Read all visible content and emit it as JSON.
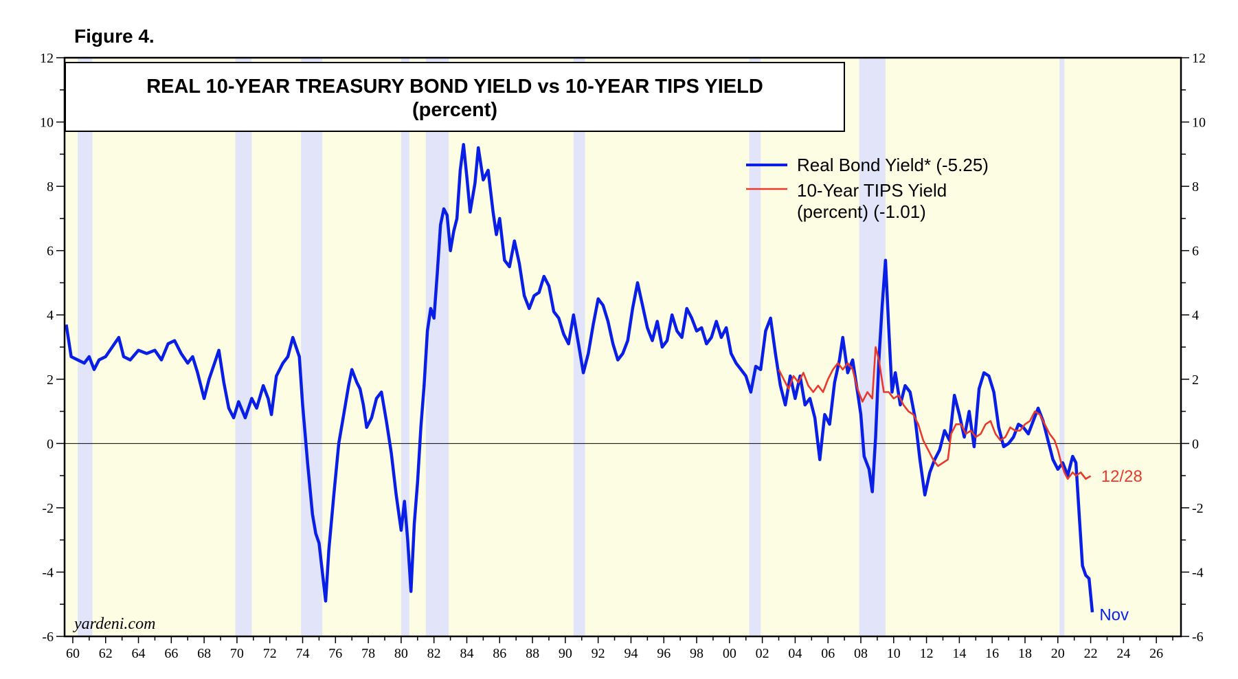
{
  "chart_data": {
    "type": "line",
    "figure_label": "Figure 4.",
    "title": "REAL 10-YEAR TREASURY BOND YIELD vs 10-YEAR TIPS YIELD",
    "subtitle": "(percent)",
    "xlabel": "",
    "ylabel": "",
    "x_range": [
      1959.5,
      2027.5
    ],
    "ylim": [
      -6,
      12
    ],
    "y_ticks": [
      -6,
      -4,
      -2,
      0,
      2,
      4,
      6,
      8,
      10,
      12
    ],
    "x_ticks": [
      "60",
      "62",
      "64",
      "66",
      "68",
      "70",
      "72",
      "74",
      "76",
      "78",
      "80",
      "82",
      "84",
      "86",
      "88",
      "90",
      "92",
      "94",
      "96",
      "98",
      "00",
      "02",
      "04",
      "06",
      "08",
      "10",
      "12",
      "14",
      "16",
      "18",
      "20",
      "22",
      "24",
      "26"
    ],
    "x_tick_years": [
      1960,
      1962,
      1964,
      1966,
      1968,
      1970,
      1972,
      1974,
      1976,
      1978,
      1980,
      1982,
      1984,
      1986,
      1988,
      1990,
      1992,
      1994,
      1996,
      1998,
      2000,
      2002,
      2004,
      2006,
      2008,
      2010,
      2012,
      2014,
      2016,
      2018,
      2020,
      2022,
      2024,
      2026
    ],
    "grid": false,
    "zero_line": true,
    "legend": "top-right",
    "recessions": [
      [
        1960.3,
        1961.2
      ],
      [
        1969.9,
        1970.9
      ],
      [
        1973.9,
        1975.2
      ],
      [
        1980.0,
        1980.5
      ],
      [
        1981.5,
        1982.9
      ],
      [
        1990.5,
        1991.2
      ],
      [
        2001.2,
        2001.9
      ],
      [
        2007.9,
        2009.5
      ],
      [
        2020.1,
        2020.4
      ]
    ],
    "series": [
      {
        "name": "Real Bond Yield* (-5.25)",
        "color": "#0a1fe6",
        "points": [
          [
            1959.6,
            3.7
          ],
          [
            1959.9,
            2.7
          ],
          [
            1960.3,
            2.6
          ],
          [
            1960.7,
            2.5
          ],
          [
            1961.0,
            2.7
          ],
          [
            1961.3,
            2.3
          ],
          [
            1961.6,
            2.6
          ],
          [
            1962.0,
            2.7
          ],
          [
            1962.4,
            3.0
          ],
          [
            1962.8,
            3.3
          ],
          [
            1963.1,
            2.7
          ],
          [
            1963.5,
            2.6
          ],
          [
            1964.0,
            2.9
          ],
          [
            1964.5,
            2.8
          ],
          [
            1965.0,
            2.9
          ],
          [
            1965.4,
            2.6
          ],
          [
            1965.8,
            3.1
          ],
          [
            1966.2,
            3.2
          ],
          [
            1966.6,
            2.8
          ],
          [
            1967.0,
            2.5
          ],
          [
            1967.3,
            2.7
          ],
          [
            1967.6,
            2.2
          ],
          [
            1968.0,
            1.4
          ],
          [
            1968.3,
            2.0
          ],
          [
            1968.7,
            2.6
          ],
          [
            1968.9,
            2.9
          ],
          [
            1969.2,
            1.9
          ],
          [
            1969.5,
            1.1
          ],
          [
            1969.8,
            0.8
          ],
          [
            1970.1,
            1.3
          ],
          [
            1970.5,
            0.8
          ],
          [
            1970.9,
            1.4
          ],
          [
            1971.2,
            1.1
          ],
          [
            1971.6,
            1.8
          ],
          [
            1971.9,
            1.4
          ],
          [
            1972.1,
            0.9
          ],
          [
            1972.4,
            2.1
          ],
          [
            1972.8,
            2.5
          ],
          [
            1973.1,
            2.7
          ],
          [
            1973.4,
            3.3
          ],
          [
            1973.8,
            2.7
          ],
          [
            1974.0,
            1.2
          ],
          [
            1974.3,
            -0.6
          ],
          [
            1974.6,
            -2.2
          ],
          [
            1974.8,
            -2.8
          ],
          [
            1975.0,
            -3.1
          ],
          [
            1975.2,
            -4.0
          ],
          [
            1975.4,
            -4.9
          ],
          [
            1975.6,
            -3.3
          ],
          [
            1975.9,
            -1.6
          ],
          [
            1976.2,
            0.0
          ],
          [
            1976.5,
            0.9
          ],
          [
            1976.8,
            1.8
          ],
          [
            1977.0,
            2.3
          ],
          [
            1977.3,
            1.9
          ],
          [
            1977.5,
            1.7
          ],
          [
            1977.7,
            1.2
          ],
          [
            1977.9,
            0.5
          ],
          [
            1978.2,
            0.8
          ],
          [
            1978.5,
            1.4
          ],
          [
            1978.8,
            1.6
          ],
          [
            1979.1,
            0.7
          ],
          [
            1979.4,
            -0.3
          ],
          [
            1979.7,
            -1.6
          ],
          [
            1980.0,
            -2.7
          ],
          [
            1980.2,
            -1.8
          ],
          [
            1980.4,
            -3.0
          ],
          [
            1980.6,
            -4.6
          ],
          [
            1980.8,
            -2.5
          ],
          [
            1981.0,
            -1.2
          ],
          [
            1981.2,
            0.5
          ],
          [
            1981.4,
            1.8
          ],
          [
            1981.6,
            3.5
          ],
          [
            1981.8,
            4.2
          ],
          [
            1982.0,
            3.9
          ],
          [
            1982.2,
            5.3
          ],
          [
            1982.4,
            6.8
          ],
          [
            1982.6,
            7.3
          ],
          [
            1982.8,
            7.1
          ],
          [
            1983.0,
            6.0
          ],
          [
            1983.2,
            6.6
          ],
          [
            1983.4,
            7.0
          ],
          [
            1983.6,
            8.5
          ],
          [
            1983.8,
            9.3
          ],
          [
            1984.0,
            8.3
          ],
          [
            1984.2,
            7.2
          ],
          [
            1984.5,
            8.1
          ],
          [
            1984.7,
            9.2
          ],
          [
            1985.0,
            8.2
          ],
          [
            1985.3,
            8.5
          ],
          [
            1985.6,
            7.2
          ],
          [
            1985.8,
            6.5
          ],
          [
            1986.0,
            7.0
          ],
          [
            1986.3,
            5.7
          ],
          [
            1986.6,
            5.5
          ],
          [
            1986.9,
            6.3
          ],
          [
            1987.2,
            5.6
          ],
          [
            1987.5,
            4.6
          ],
          [
            1987.8,
            4.2
          ],
          [
            1988.1,
            4.6
          ],
          [
            1988.4,
            4.7
          ],
          [
            1988.7,
            5.2
          ],
          [
            1989.0,
            4.9
          ],
          [
            1989.3,
            4.1
          ],
          [
            1989.6,
            3.9
          ],
          [
            1989.9,
            3.4
          ],
          [
            1990.2,
            3.1
          ],
          [
            1990.5,
            4.0
          ],
          [
            1990.8,
            3.1
          ],
          [
            1991.1,
            2.2
          ],
          [
            1991.4,
            2.8
          ],
          [
            1991.7,
            3.7
          ],
          [
            1992.0,
            4.5
          ],
          [
            1992.3,
            4.3
          ],
          [
            1992.6,
            3.8
          ],
          [
            1992.9,
            3.1
          ],
          [
            1993.2,
            2.6
          ],
          [
            1993.5,
            2.8
          ],
          [
            1993.8,
            3.2
          ],
          [
            1994.1,
            4.2
          ],
          [
            1994.4,
            5.0
          ],
          [
            1994.7,
            4.3
          ],
          [
            1995.0,
            3.6
          ],
          [
            1995.3,
            3.2
          ],
          [
            1995.6,
            3.8
          ],
          [
            1995.9,
            3.0
          ],
          [
            1996.2,
            3.2
          ],
          [
            1996.5,
            4.0
          ],
          [
            1996.8,
            3.5
          ],
          [
            1997.1,
            3.3
          ],
          [
            1997.4,
            4.2
          ],
          [
            1997.7,
            3.9
          ],
          [
            1998.0,
            3.5
          ],
          [
            1998.3,
            3.6
          ],
          [
            1998.6,
            3.1
          ],
          [
            1998.9,
            3.3
          ],
          [
            1999.2,
            3.8
          ],
          [
            1999.5,
            3.3
          ],
          [
            1999.8,
            3.6
          ],
          [
            2000.1,
            2.8
          ],
          [
            2000.4,
            2.5
          ],
          [
            2000.7,
            2.3
          ],
          [
            2001.0,
            2.1
          ],
          [
            2001.3,
            1.6
          ],
          [
            2001.6,
            2.4
          ],
          [
            2001.9,
            2.3
          ],
          [
            2002.2,
            3.5
          ],
          [
            2002.5,
            3.9
          ],
          [
            2002.8,
            2.8
          ],
          [
            2003.1,
            1.8
          ],
          [
            2003.4,
            1.2
          ],
          [
            2003.7,
            2.1
          ],
          [
            2004.0,
            1.4
          ],
          [
            2004.3,
            2.1
          ],
          [
            2004.6,
            1.2
          ],
          [
            2004.9,
            1.4
          ],
          [
            2005.2,
            0.8
          ],
          [
            2005.5,
            -0.5
          ],
          [
            2005.8,
            0.9
          ],
          [
            2006.1,
            0.6
          ],
          [
            2006.4,
            1.9
          ],
          [
            2006.7,
            2.6
          ],
          [
            2006.9,
            3.3
          ],
          [
            2007.2,
            2.2
          ],
          [
            2007.5,
            2.6
          ],
          [
            2007.8,
            1.6
          ],
          [
            2008.0,
            0.9
          ],
          [
            2008.2,
            -0.4
          ],
          [
            2008.5,
            -0.8
          ],
          [
            2008.7,
            -1.5
          ],
          [
            2008.9,
            0.2
          ],
          [
            2009.1,
            2.6
          ],
          [
            2009.3,
            4.3
          ],
          [
            2009.5,
            5.7
          ],
          [
            2009.7,
            3.6
          ],
          [
            2009.9,
            1.6
          ],
          [
            2010.1,
            2.2
          ],
          [
            2010.4,
            1.2
          ],
          [
            2010.7,
            1.8
          ],
          [
            2011.0,
            1.6
          ],
          [
            2011.3,
            0.8
          ],
          [
            2011.6,
            -0.5
          ],
          [
            2011.9,
            -1.6
          ],
          [
            2012.2,
            -0.9
          ],
          [
            2012.5,
            -0.5
          ],
          [
            2012.8,
            -0.2
          ],
          [
            2013.1,
            0.4
          ],
          [
            2013.4,
            0.1
          ],
          [
            2013.7,
            1.5
          ],
          [
            2014.0,
            0.9
          ],
          [
            2014.3,
            0.2
          ],
          [
            2014.6,
            1.0
          ],
          [
            2014.9,
            -0.1
          ],
          [
            2015.2,
            1.7
          ],
          [
            2015.5,
            2.2
          ],
          [
            2015.8,
            2.1
          ],
          [
            2016.1,
            1.6
          ],
          [
            2016.4,
            0.5
          ],
          [
            2016.7,
            -0.1
          ],
          [
            2017.0,
            0.0
          ],
          [
            2017.3,
            0.2
          ],
          [
            2017.6,
            0.6
          ],
          [
            2017.9,
            0.5
          ],
          [
            2018.2,
            0.3
          ],
          [
            2018.5,
            0.7
          ],
          [
            2018.8,
            1.1
          ],
          [
            2019.1,
            0.7
          ],
          [
            2019.4,
            0.1
          ],
          [
            2019.7,
            -0.5
          ],
          [
            2020.0,
            -0.8
          ],
          [
            2020.3,
            -0.6
          ],
          [
            2020.6,
            -1.0
          ],
          [
            2020.9,
            -0.4
          ],
          [
            2021.1,
            -0.6
          ],
          [
            2021.3,
            -2.2
          ],
          [
            2021.5,
            -3.8
          ],
          [
            2021.7,
            -4.1
          ],
          [
            2021.9,
            -4.2
          ],
          [
            2022.1,
            -5.25
          ]
        ]
      },
      {
        "name": "10-Year TIPS Yield (percent) (-1.01)",
        "color": "#e8392c",
        "points": [
          [
            2003.0,
            2.3
          ],
          [
            2003.3,
            2.0
          ],
          [
            2003.6,
            1.7
          ],
          [
            2003.9,
            2.1
          ],
          [
            2004.2,
            1.9
          ],
          [
            2004.5,
            2.2
          ],
          [
            2004.8,
            1.8
          ],
          [
            2005.1,
            1.6
          ],
          [
            2005.4,
            1.8
          ],
          [
            2005.7,
            1.6
          ],
          [
            2006.0,
            2.0
          ],
          [
            2006.3,
            2.3
          ],
          [
            2006.6,
            2.5
          ],
          [
            2006.9,
            2.3
          ],
          [
            2007.2,
            2.5
          ],
          [
            2007.5,
            2.3
          ],
          [
            2007.8,
            1.7
          ],
          [
            2008.1,
            1.3
          ],
          [
            2008.4,
            1.6
          ],
          [
            2008.7,
            1.4
          ],
          [
            2008.9,
            3.0
          ],
          [
            2009.1,
            2.6
          ],
          [
            2009.4,
            1.6
          ],
          [
            2009.7,
            1.6
          ],
          [
            2010.0,
            1.4
          ],
          [
            2010.3,
            1.5
          ],
          [
            2010.6,
            1.2
          ],
          [
            2010.9,
            1.0
          ],
          [
            2011.2,
            0.9
          ],
          [
            2011.5,
            0.6
          ],
          [
            2011.8,
            0.1
          ],
          [
            2012.1,
            -0.2
          ],
          [
            2012.4,
            -0.5
          ],
          [
            2012.7,
            -0.7
          ],
          [
            2013.0,
            -0.6
          ],
          [
            2013.3,
            -0.5
          ],
          [
            2013.5,
            0.3
          ],
          [
            2013.8,
            0.6
          ],
          [
            2014.1,
            0.6
          ],
          [
            2014.4,
            0.3
          ],
          [
            2014.7,
            0.4
          ],
          [
            2015.0,
            0.2
          ],
          [
            2015.3,
            0.3
          ],
          [
            2015.6,
            0.6
          ],
          [
            2015.9,
            0.7
          ],
          [
            2016.2,
            0.3
          ],
          [
            2016.5,
            0.1
          ],
          [
            2016.8,
            0.2
          ],
          [
            2017.1,
            0.5
          ],
          [
            2017.4,
            0.4
          ],
          [
            2017.7,
            0.4
          ],
          [
            2018.0,
            0.6
          ],
          [
            2018.3,
            0.7
          ],
          [
            2018.6,
            1.0
          ],
          [
            2018.9,
            0.9
          ],
          [
            2019.2,
            0.6
          ],
          [
            2019.5,
            0.3
          ],
          [
            2019.8,
            0.1
          ],
          [
            2020.0,
            -0.2
          ],
          [
            2020.2,
            -0.6
          ],
          [
            2020.4,
            -0.9
          ],
          [
            2020.6,
            -1.1
          ],
          [
            2020.9,
            -0.9
          ],
          [
            2021.1,
            -1.0
          ],
          [
            2021.4,
            -0.9
          ],
          [
            2021.7,
            -1.1
          ],
          [
            2022.0,
            -1.01
          ]
        ]
      }
    ],
    "annotations": [
      {
        "text": "12/28",
        "x": 2022.3,
        "y": -1.0,
        "color": "#e8392c"
      },
      {
        "text": "Nov",
        "x": 2022.2,
        "y": -5.3,
        "color": "#0a1fe6"
      }
    ],
    "source": "yardeni.com"
  }
}
